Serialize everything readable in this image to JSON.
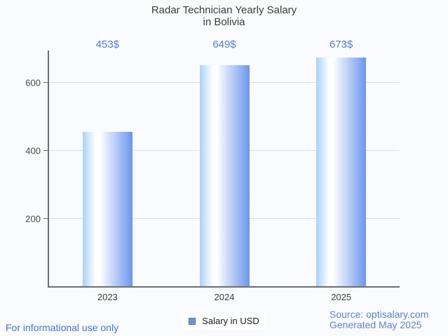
{
  "page": {
    "background_color": "#fafbfe"
  },
  "chart_data": {
    "type": "bar",
    "title": "Radar Technician Yearly Salary",
    "subtitle": "in Bolivia",
    "categories": [
      "2023",
      "2024",
      "2025"
    ],
    "series": [
      {
        "name": "Salary in USD",
        "values": [
          453,
          649,
          673
        ]
      }
    ],
    "value_labels": [
      "453$",
      "649$",
      "673$"
    ],
    "xlabel": "",
    "ylabel": "",
    "ylim": [
      0,
      693
    ],
    "yticks": [
      200,
      400,
      600
    ],
    "grid": true,
    "legend_position": "bottom",
    "bar_gradient": [
      "#a9d2f8",
      "#ffffff",
      "#6b96ee"
    ],
    "value_label_color": "#4e7de0",
    "title_color": "#3c3c3c",
    "axis_color": "#6e6e6e",
    "gridline_color": "#dfdfdf",
    "tick_label_color": "#474747"
  },
  "legend": {
    "label": "Salary in USD",
    "marker_fill": "#5b98e4",
    "marker_border": "#6b7580",
    "text_color": "#1a1a1a"
  },
  "footer": {
    "left": "For informational use only",
    "left_color": "#4173e3",
    "source": "Source: optisalary.com",
    "generated": "Generated May 2025",
    "right_color": "#5e81d8"
  }
}
